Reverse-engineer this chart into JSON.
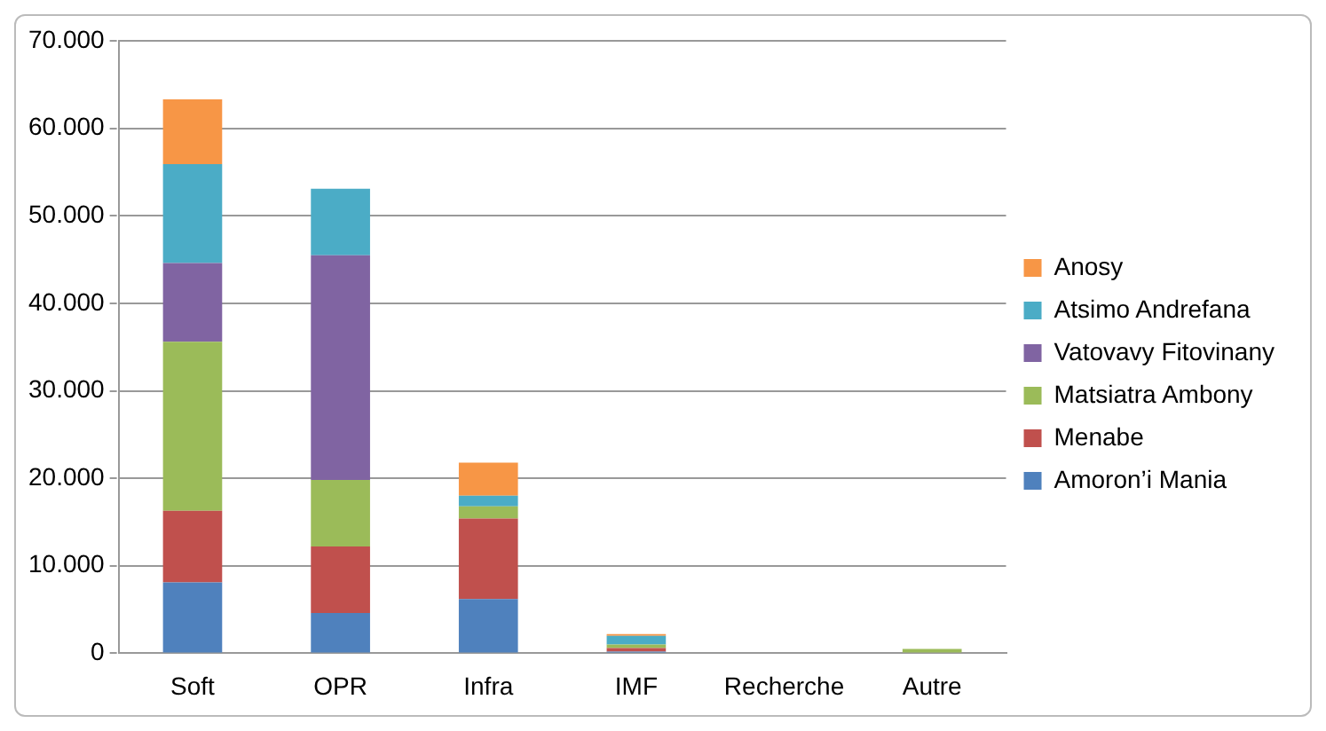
{
  "chart_data": {
    "type": "bar",
    "stacked": true,
    "categories": [
      "Soft",
      "OPR",
      "Infra",
      "IMF",
      "Recherche",
      "Autre"
    ],
    "series": [
      {
        "name": "Amoron’i Mania",
        "color": "#4f81bd",
        "values": [
          8100,
          4600,
          6200,
          200,
          0,
          0
        ]
      },
      {
        "name": "Menabe",
        "color": "#c0504d",
        "values": [
          8200,
          7600,
          9200,
          400,
          0,
          0
        ]
      },
      {
        "name": "Matsiatra Ambony",
        "color": "#9bbb59",
        "values": [
          19300,
          7600,
          1400,
          400,
          0,
          500
        ]
      },
      {
        "name": "Vatovavy Fitovinany",
        "color": "#8064a2",
        "values": [
          9000,
          25700,
          0,
          0,
          0,
          0
        ]
      },
      {
        "name": "Atsimo Andrefana",
        "color": "#4bacc6",
        "values": [
          11300,
          7600,
          1200,
          1000,
          0,
          0
        ]
      },
      {
        "name": "Anosy",
        "color": "#f79646",
        "values": [
          7400,
          0,
          3800,
          200,
          0,
          0
        ]
      }
    ],
    "ylim": [
      0,
      70000
    ],
    "yticks": [
      {
        "value": 0,
        "label": "0"
      },
      {
        "value": 10000,
        "label": "10.000"
      },
      {
        "value": 20000,
        "label": "20.000"
      },
      {
        "value": 30000,
        "label": "30.000"
      },
      {
        "value": 40000,
        "label": "40.000"
      },
      {
        "value": 50000,
        "label": "50.000"
      },
      {
        "value": 60000,
        "label": "60.000"
      },
      {
        "value": 70000,
        "label": "70.000"
      }
    ],
    "grid": "y",
    "legend": "right"
  }
}
